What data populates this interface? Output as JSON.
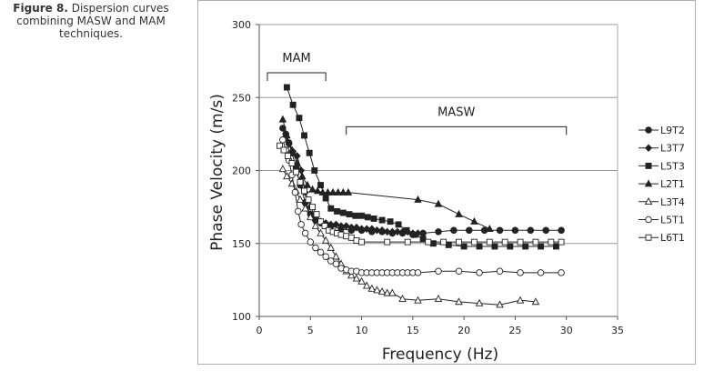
{
  "caption": {
    "label": "Figure 8.",
    "text": " Dispersion curves combining MASW and MAM techniques."
  },
  "chart_data": {
    "type": "line",
    "xlabel": "Frequency  (Hz)",
    "ylabel": "Phase Velocity (m/s)",
    "xlim": [
      0,
      35
    ],
    "ylim": [
      100,
      300
    ],
    "xticks": [
      0,
      5,
      10,
      15,
      20,
      25,
      30,
      35
    ],
    "yticks": [
      100,
      150,
      200,
      250,
      300
    ],
    "grid": "horizontal",
    "legend_position": "right",
    "annotations": [
      {
        "text": "MAM",
        "x_start": 0.8,
        "x_end": 6.5,
        "y": 267
      },
      {
        "text": "MASW",
        "x_start": 8.5,
        "x_end": 30,
        "y": 230
      }
    ],
    "series": [
      {
        "name": "L9T2",
        "marker": "circle-filled",
        "points": [
          [
            2.3,
            229
          ],
          [
            2.6,
            225
          ],
          [
            2.9,
            219
          ],
          [
            3.2,
            212
          ],
          [
            3.6,
            202
          ],
          [
            4.0,
            190
          ],
          [
            4.5,
            178
          ],
          [
            5.0,
            170
          ],
          [
            5.5,
            166
          ],
          [
            6.0,
            164
          ],
          [
            7.0,
            162
          ],
          [
            8.0,
            160
          ],
          [
            9.0,
            159
          ],
          [
            10.0,
            159
          ],
          [
            11.0,
            158
          ],
          [
            12.0,
            158
          ],
          [
            13.0,
            157
          ],
          [
            14.0,
            157
          ],
          [
            15.0,
            156
          ],
          [
            16.0,
            157
          ],
          [
            17.5,
            158
          ],
          [
            19.0,
            159
          ],
          [
            20.5,
            159
          ],
          [
            22.0,
            159
          ],
          [
            23.5,
            159
          ],
          [
            25.0,
            159
          ],
          [
            26.5,
            159
          ],
          [
            28.0,
            159
          ],
          [
            29.5,
            159
          ]
        ]
      },
      {
        "name": "L3T7",
        "marker": "diamond-filled",
        "points": [
          [
            2.5,
            222
          ],
          [
            2.9,
            218
          ],
          [
            3.3,
            213
          ],
          [
            3.7,
            210
          ],
          [
            4.1,
            200
          ],
          [
            4.5,
            185
          ],
          [
            5.0,
            175
          ],
          [
            5.5,
            168
          ],
          [
            6.0,
            165
          ],
          [
            6.5,
            164
          ],
          [
            7.0,
            163
          ],
          [
            7.5,
            163
          ],
          [
            8.0,
            162
          ],
          [
            8.5,
            162
          ],
          [
            9.0,
            161
          ],
          [
            9.5,
            161
          ],
          [
            10.0,
            160
          ],
          [
            10.5,
            160
          ],
          [
            11.0,
            160
          ],
          [
            11.5,
            159
          ],
          [
            12.0,
            159
          ],
          [
            12.5,
            158
          ],
          [
            13.0,
            158
          ],
          [
            13.5,
            158
          ],
          [
            14.0,
            158
          ],
          [
            14.5,
            158
          ],
          [
            15.0,
            157
          ],
          [
            15.5,
            157
          ],
          [
            16.0,
            157
          ]
        ]
      },
      {
        "name": "L5T3",
        "marker": "square-filled",
        "points": [
          [
            2.7,
            257
          ],
          [
            3.3,
            245
          ],
          [
            3.9,
            236
          ],
          [
            4.4,
            224
          ],
          [
            4.9,
            212
          ],
          [
            5.4,
            200
          ],
          [
            6.0,
            190
          ],
          [
            6.5,
            181
          ],
          [
            7.0,
            174
          ],
          [
            7.6,
            172
          ],
          [
            8.2,
            171
          ],
          [
            8.8,
            170
          ],
          [
            9.4,
            169
          ],
          [
            10.0,
            169
          ],
          [
            10.6,
            168
          ],
          [
            11.2,
            167
          ],
          [
            12.0,
            166
          ],
          [
            12.8,
            165
          ],
          [
            13.6,
            163
          ],
          [
            14.4,
            159
          ],
          [
            15.2,
            156
          ],
          [
            16.0,
            153
          ],
          [
            17.0,
            150
          ],
          [
            18.5,
            149
          ],
          [
            20.0,
            148
          ],
          [
            21.5,
            148
          ],
          [
            23.0,
            148
          ],
          [
            24.5,
            148
          ],
          [
            26.0,
            148
          ],
          [
            27.5,
            148
          ],
          [
            29.0,
            148
          ]
        ]
      },
      {
        "name": "L2T1",
        "marker": "triangle-filled",
        "points": [
          [
            2.3,
            235
          ],
          [
            2.7,
            224
          ],
          [
            3.2,
            214
          ],
          [
            3.7,
            205
          ],
          [
            4.2,
            196
          ],
          [
            4.7,
            190
          ],
          [
            5.2,
            187
          ],
          [
            5.7,
            186
          ],
          [
            6.2,
            185
          ],
          [
            6.7,
            185
          ],
          [
            7.2,
            185
          ],
          [
            7.7,
            185
          ],
          [
            8.2,
            185
          ],
          [
            8.7,
            185
          ],
          [
            15.5,
            180
          ],
          [
            17.5,
            177
          ],
          [
            19.5,
            170
          ],
          [
            21.0,
            165
          ],
          [
            22.5,
            160
          ]
        ]
      },
      {
        "name": "L3T4",
        "marker": "triangle-open",
        "points": [
          [
            2.3,
            201
          ],
          [
            2.7,
            196
          ],
          [
            3.2,
            191
          ],
          [
            3.6,
            186
          ],
          [
            4.0,
            180
          ],
          [
            4.5,
            174
          ],
          [
            5.0,
            168
          ],
          [
            5.5,
            162
          ],
          [
            6.0,
            157
          ],
          [
            6.5,
            152
          ],
          [
            7.0,
            147
          ],
          [
            7.5,
            141
          ],
          [
            8.0,
            136
          ],
          [
            8.5,
            131
          ],
          [
            9.0,
            128
          ],
          [
            9.5,
            126
          ],
          [
            10.0,
            124
          ],
          [
            10.5,
            121
          ],
          [
            11.0,
            119
          ],
          [
            11.5,
            118
          ],
          [
            12.0,
            117
          ],
          [
            12.5,
            116
          ],
          [
            13.0,
            116
          ],
          [
            14.0,
            112
          ],
          [
            15.5,
            111
          ],
          [
            17.5,
            112
          ],
          [
            19.5,
            110
          ],
          [
            21.5,
            109
          ],
          [
            23.5,
            108
          ],
          [
            25.5,
            111
          ],
          [
            27.0,
            110
          ]
        ]
      },
      {
        "name": "L5T1",
        "marker": "circle-open",
        "points": [
          [
            2.3,
            221
          ],
          [
            2.6,
            214
          ],
          [
            2.9,
            207
          ],
          [
            3.2,
            197
          ],
          [
            3.5,
            185
          ],
          [
            3.8,
            172
          ],
          [
            4.1,
            163
          ],
          [
            4.5,
            157
          ],
          [
            5.0,
            151
          ],
          [
            5.5,
            147
          ],
          [
            6.0,
            144
          ],
          [
            6.5,
            141
          ],
          [
            7.0,
            138
          ],
          [
            7.5,
            136
          ],
          [
            8.0,
            133
          ],
          [
            8.5,
            132
          ],
          [
            9.0,
            131
          ],
          [
            9.5,
            131
          ],
          [
            10.0,
            130
          ],
          [
            10.5,
            130
          ],
          [
            11.0,
            130
          ],
          [
            11.5,
            130
          ],
          [
            12.0,
            130
          ],
          [
            12.5,
            130
          ],
          [
            13.0,
            130
          ],
          [
            13.5,
            130
          ],
          [
            14.0,
            130
          ],
          [
            14.5,
            130
          ],
          [
            15.0,
            130
          ],
          [
            15.5,
            130
          ],
          [
            17.5,
            131
          ],
          [
            19.5,
            131
          ],
          [
            21.5,
            130
          ],
          [
            23.5,
            131
          ],
          [
            25.5,
            130
          ],
          [
            27.5,
            130
          ],
          [
            29.5,
            130
          ]
        ]
      },
      {
        "name": "L6T1",
        "marker": "square-open",
        "points": [
          [
            2.0,
            217
          ],
          [
            2.4,
            214
          ],
          [
            2.8,
            210
          ],
          [
            3.2,
            205
          ],
          [
            3.6,
            199
          ],
          [
            4.0,
            192
          ],
          [
            4.4,
            186
          ],
          [
            4.8,
            180
          ],
          [
            5.2,
            175
          ],
          [
            5.6,
            170
          ],
          [
            6.0,
            165
          ],
          [
            6.4,
            162
          ],
          [
            6.8,
            159
          ],
          [
            7.2,
            158
          ],
          [
            7.6,
            157
          ],
          [
            8.0,
            156
          ],
          [
            8.5,
            155
          ],
          [
            9.0,
            154
          ],
          [
            9.5,
            152
          ],
          [
            10.0,
            151
          ],
          [
            12.5,
            151
          ],
          [
            14.5,
            151
          ],
          [
            16.5,
            151
          ],
          [
            18.0,
            151
          ],
          [
            19.5,
            151
          ],
          [
            21.0,
            151
          ],
          [
            22.5,
            151
          ],
          [
            24.0,
            151
          ],
          [
            25.5,
            151
          ],
          [
            27.0,
            151
          ],
          [
            28.5,
            151
          ],
          [
            29.5,
            151
          ]
        ]
      }
    ]
  }
}
